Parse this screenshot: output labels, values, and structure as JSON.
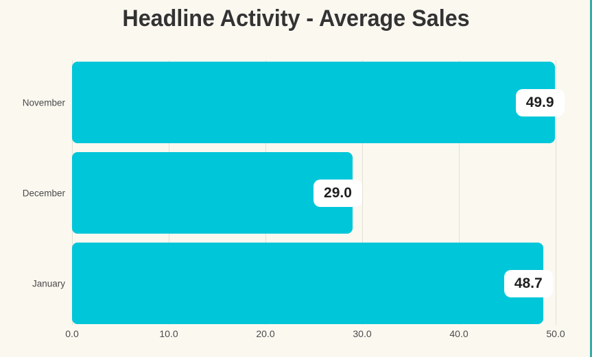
{
  "page": {
    "title": "Headline Activity - Average Sales"
  },
  "colors": {
    "background": "#FBF8F0",
    "bar": "#00C6D9",
    "gridline": "#E3E0D7",
    "accent_edge": "#35ACA6",
    "title_text": "#333333",
    "label_text": "#4A4A4A",
    "value_text": "#1E1E1E",
    "value_pill_bg": "#FFFFFF"
  },
  "chart_data": {
    "type": "bar",
    "orientation": "horizontal",
    "title": "Headline Activity - Average Sales",
    "categories": [
      "November",
      "December",
      "January"
    ],
    "values": [
      49.9,
      29.0,
      48.7
    ],
    "value_labels": [
      "49.9",
      "29.0",
      "48.7"
    ],
    "xlabel": "",
    "ylabel": "",
    "xlim": [
      0,
      50
    ],
    "xticks": [
      0,
      10,
      20,
      30,
      40,
      50
    ],
    "xtick_labels": [
      "0.0",
      "10.0",
      "20.0",
      "30.0",
      "40.0",
      "50.0"
    ],
    "grid": "vertical",
    "legend": "none"
  }
}
